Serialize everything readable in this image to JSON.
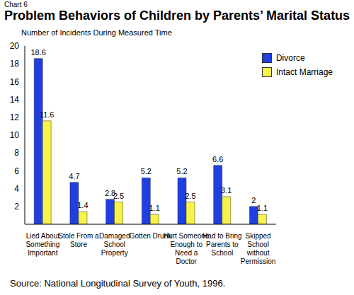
{
  "chart_data": {
    "type": "bar",
    "title": "Problem Behaviors of Children by Parents’ Marital Status",
    "annotations": [
      "Chart 6",
      "Source: National Longitudinal Survey of Youth, 1996."
    ],
    "y_label": "Number of Incidents During Measured Time",
    "categories": [
      "Lied About Something Important",
      "Stole From a Store",
      "Damaged School Property",
      "Gotten Drunk",
      "Hurt Someone Enough to Need a Doctor",
      "Had to Bring Parents to School",
      "Skipped School without Permission"
    ],
    "series": [
      {
        "name": "Divorce",
        "color": "#1f3fe0",
        "values": [
          18.6,
          4.7,
          2.8,
          5.2,
          5.2,
          6.6,
          2
        ]
      },
      {
        "name": "Intact Marriage",
        "color": "#f7f34a",
        "values": [
          11.6,
          1.4,
          2.5,
          1.1,
          2.5,
          3.1,
          1.1
        ]
      }
    ],
    "ylim": [
      0,
      20
    ],
    "yticks": [
      2,
      4,
      6,
      8,
      10,
      12,
      14,
      16,
      18,
      20
    ],
    "grid": false,
    "legend": "top-right",
    "data_labels": true
  }
}
